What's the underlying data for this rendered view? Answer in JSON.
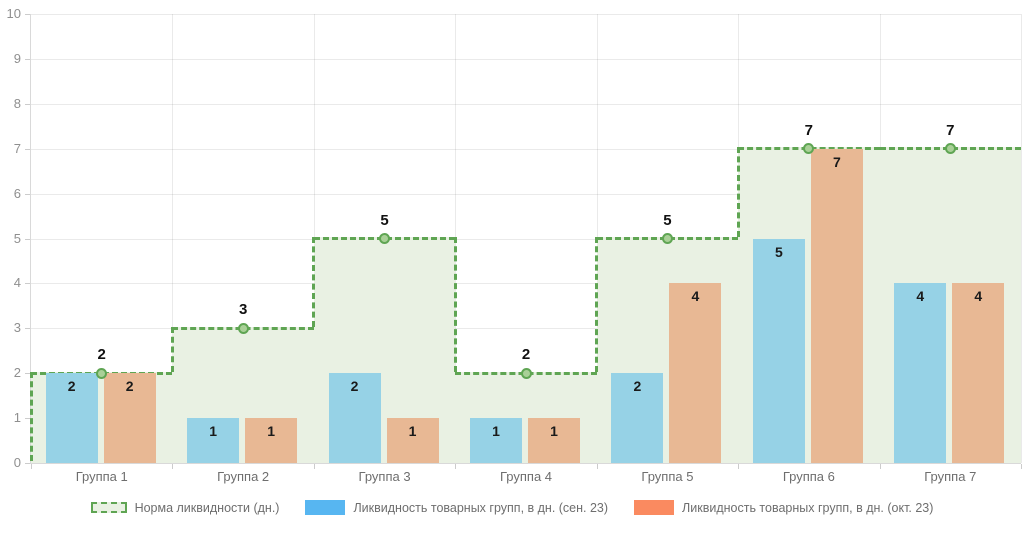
{
  "chart_data": {
    "type": "bar",
    "categories": [
      "Группа 1",
      "Группа 2",
      "Группа 3",
      "Группа 4",
      "Группа 5",
      "Группа 6",
      "Группа 7"
    ],
    "series": [
      {
        "name": "Норма ликвидности (дн.)",
        "type": "step-area",
        "values": [
          2,
          3,
          5,
          2,
          5,
          7,
          7
        ],
        "line_color": "#5fa553",
        "fill_color": "#e9f1e3",
        "marker_fill": "#a9d097"
      },
      {
        "name": "Ликвидность товарных групп, в дн. (сен. 23)",
        "type": "bar",
        "values": [
          2,
          1,
          2,
          1,
          2,
          5,
          4
        ],
        "bar_color": "#96d2e6",
        "legend_color": "#57b6f1"
      },
      {
        "name": "Ликвидность товарных групп, в дн. (окт. 23)",
        "type": "bar",
        "values": [
          2,
          1,
          1,
          1,
          4,
          7,
          4
        ],
        "bar_color": "#e8b894",
        "legend_color": "#fa8a60"
      }
    ],
    "ylim": [
      0,
      10
    ],
    "y_tick_step": 1,
    "y_tick_labels": [
      "0",
      "1",
      "2",
      "3",
      "4",
      "5",
      "6",
      "7",
      "8",
      "9",
      "10"
    ],
    "grid": true,
    "legend_position": "bottom"
  }
}
